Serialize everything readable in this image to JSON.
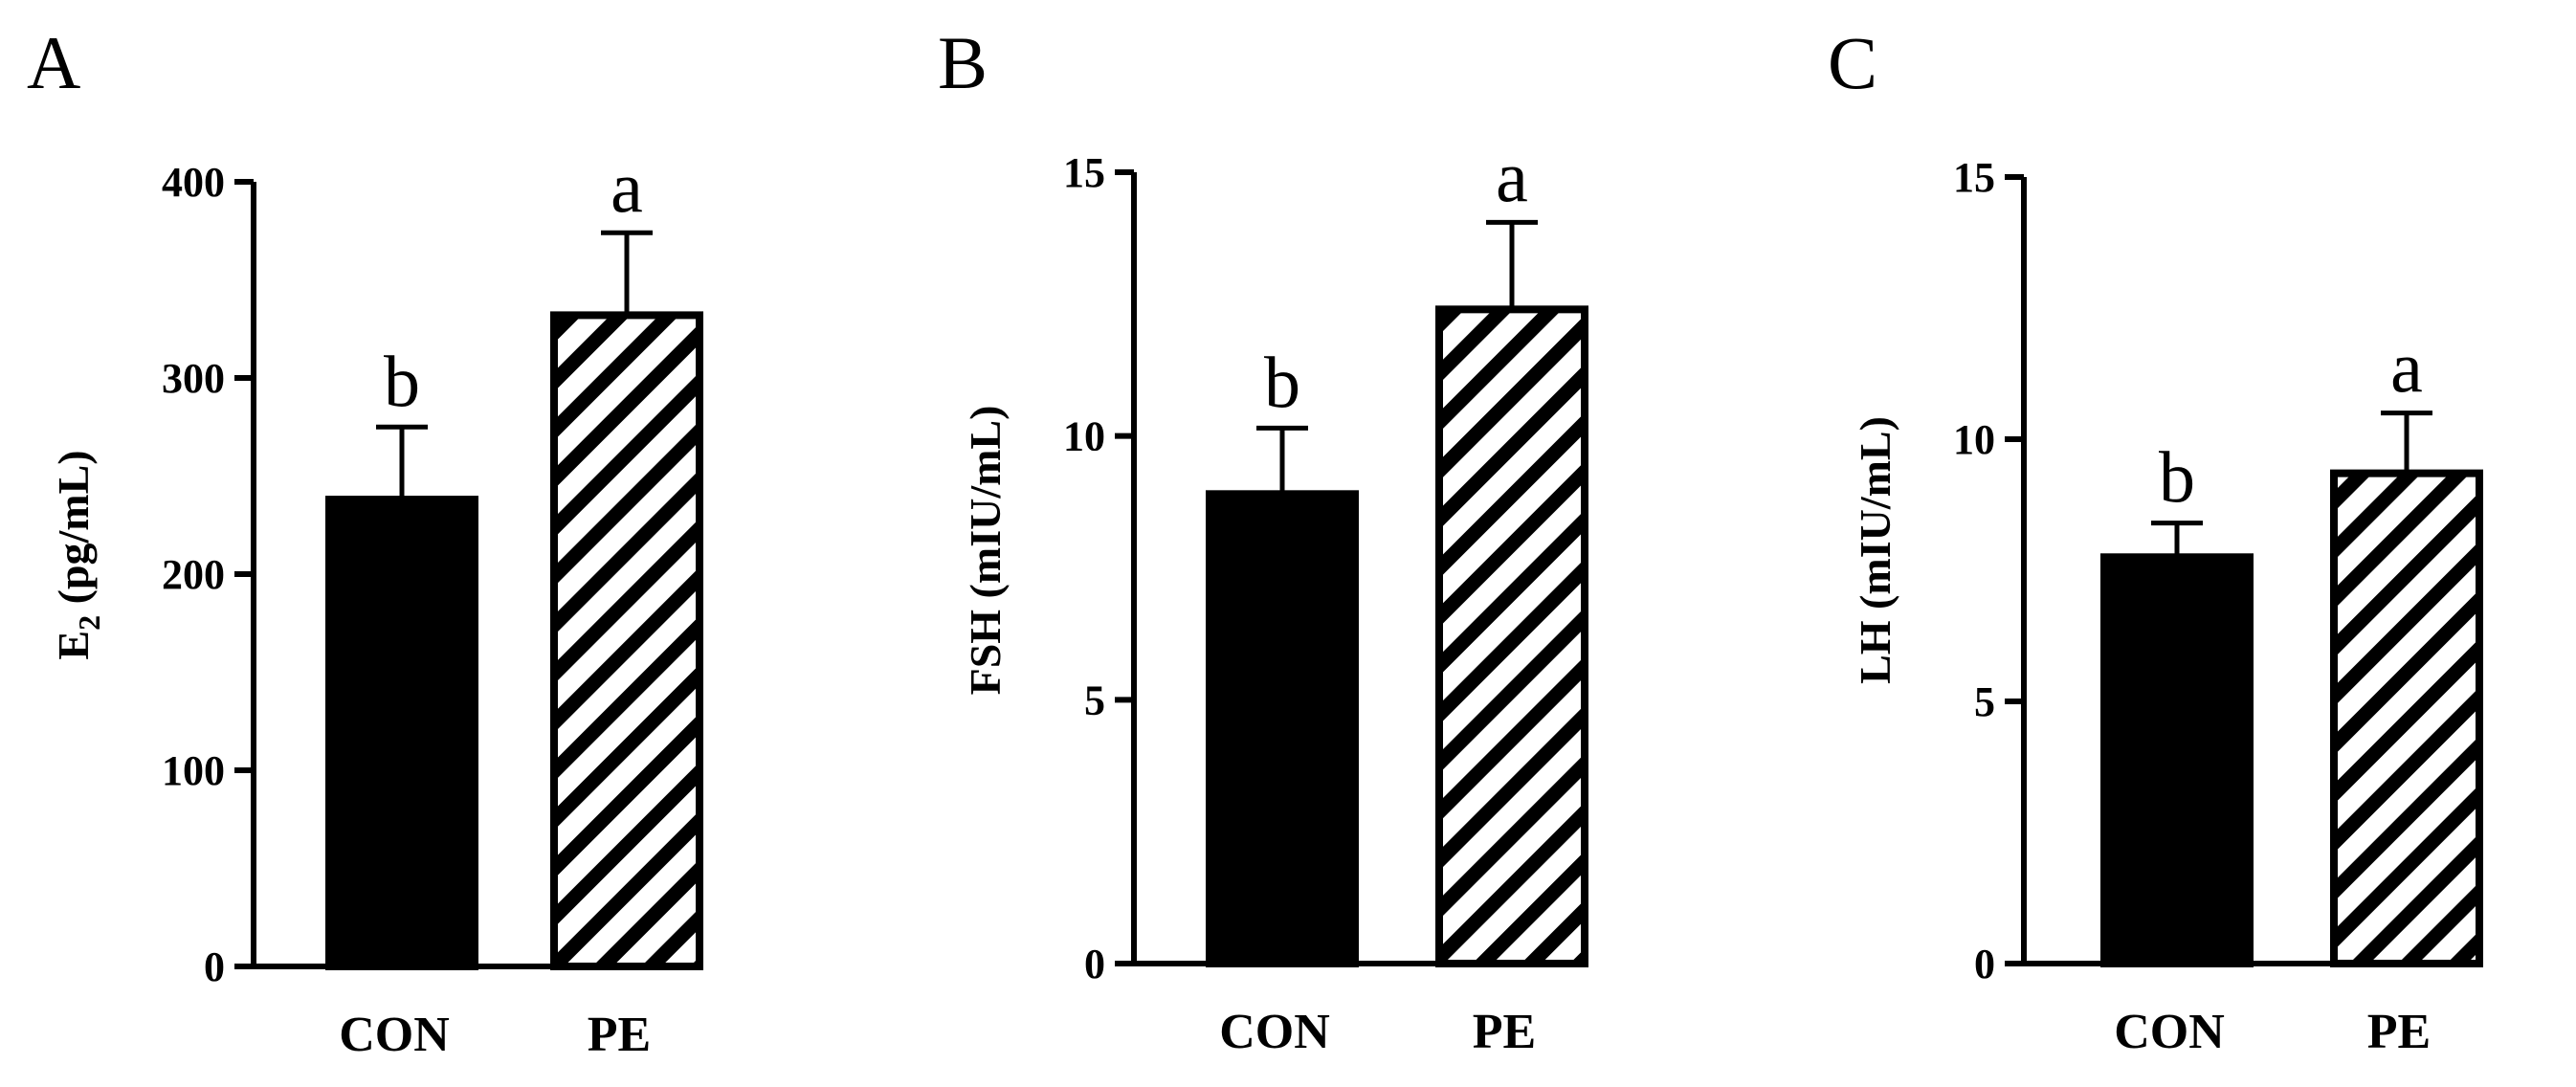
{
  "chart_data": [
    {
      "type": "bar",
      "panel": "A",
      "categories": [
        "CON",
        "PE"
      ],
      "values": [
        238,
        332
      ],
      "errors": [
        37,
        42
      ],
      "significance": [
        "b",
        "a"
      ],
      "ylabel_main": "E",
      "ylabel_sub": "2",
      "ylabel_tail": " (pg/mL)",
      "ylim": [
        0,
        400
      ],
      "yticks": [
        0,
        100,
        200,
        300,
        400
      ],
      "fills": [
        "solid",
        "hatch"
      ]
    },
    {
      "type": "bar",
      "panel": "B",
      "categories": [
        "CON",
        "PE"
      ],
      "values": [
        8.9,
        12.4
      ],
      "errors": [
        1.25,
        1.65
      ],
      "significance": [
        "b",
        "a"
      ],
      "ylabel_main": "FSH (mIU/mL)",
      "ylabel_sub": "",
      "ylabel_tail": "",
      "ylim": [
        0,
        15
      ],
      "yticks": [
        0,
        5,
        10,
        15
      ],
      "fills": [
        "solid",
        "hatch"
      ]
    },
    {
      "type": "bar",
      "panel": "C",
      "categories": [
        "CON",
        "PE"
      ],
      "values": [
        7.75,
        9.35
      ],
      "errors": [
        0.65,
        1.15
      ],
      "significance": [
        "b",
        "a"
      ],
      "ylabel_main": "LH (mIU/mL)",
      "ylabel_sub": "",
      "ylabel_tail": "",
      "ylim": [
        0,
        15
      ],
      "yticks": [
        0,
        5,
        10,
        15
      ],
      "fills": [
        "solid",
        "hatch"
      ]
    }
  ]
}
